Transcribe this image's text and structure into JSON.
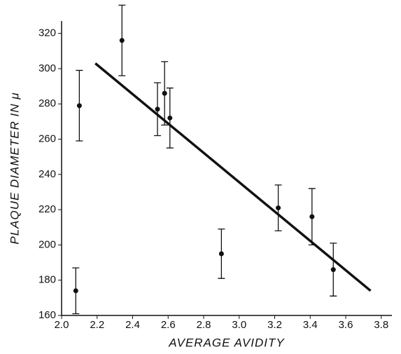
{
  "chart_data": {
    "type": "scatter",
    "x_label": "AVERAGE AVIDITY",
    "y_label": "PLAQUE DIAMETER IN μ",
    "xlim": [
      2.0,
      3.86
    ],
    "ylim": [
      160,
      327
    ],
    "xticks": [
      {
        "value": 2.0,
        "label": "2.0"
      },
      2.2,
      2.4,
      2.6,
      2.8,
      {
        "value": 3.0,
        "label": "3.0"
      },
      3.2,
      3.4,
      3.6,
      3.8
    ],
    "yticks": [
      160,
      180,
      200,
      220,
      240,
      260,
      280,
      300,
      320
    ],
    "color": "#111111",
    "x": [
      2.08,
      2.1,
      2.34,
      2.54,
      2.58,
      2.61,
      2.9,
      3.22,
      3.41,
      3.53
    ],
    "values": [
      174,
      279,
      316,
      277,
      286,
      272,
      195,
      221,
      216,
      186
    ],
    "errors": [
      13,
      20,
      20,
      15,
      18,
      17,
      14,
      13,
      16,
      15
    ],
    "fit": {
      "x": [
        2.19,
        3.74
      ],
      "values": [
        303,
        174
      ]
    }
  }
}
